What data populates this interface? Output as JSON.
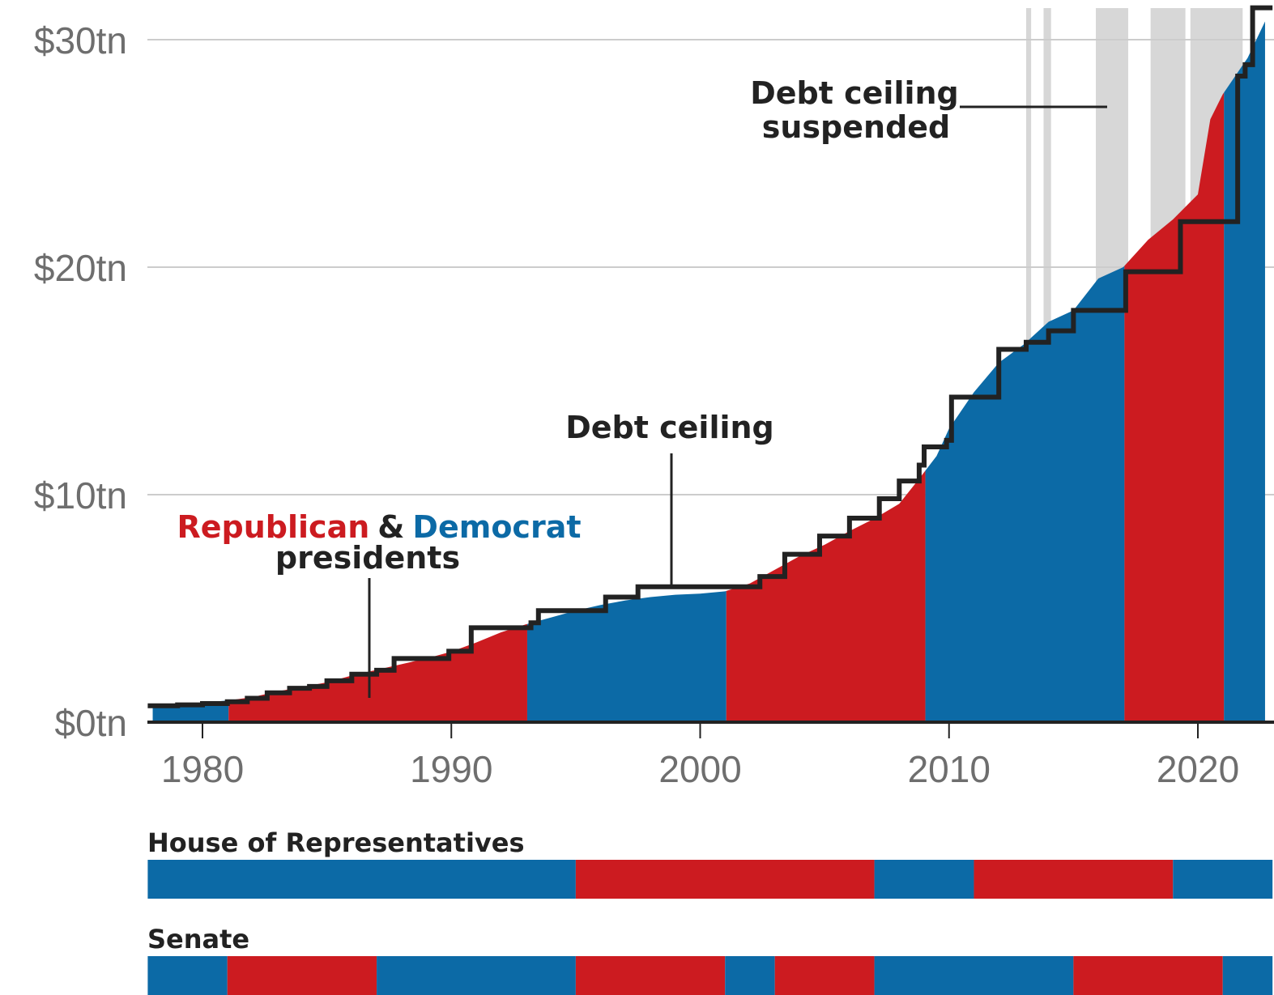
{
  "colors": {
    "republican": "#cc1b20",
    "democrat": "#0c6aa6",
    "ceiling": "#222222",
    "suspended": "#d7d7d7",
    "grid": "#cccccc",
    "axis": "#222222",
    "tick_text": "#6e6e6e"
  },
  "chart_data": {
    "type": "area",
    "ylim": [
      0,
      31.5
    ],
    "xlim": [
      1977.8,
      2023.0
    ],
    "y_ticks": [
      {
        "value": 0,
        "label": "$0tn"
      },
      {
        "value": 10,
        "label": "$10tn"
      },
      {
        "value": 20,
        "label": "$20tn"
      },
      {
        "value": 30,
        "label": "$30tn"
      }
    ],
    "x_ticks": [
      {
        "value": 1980,
        "label": "1980"
      },
      {
        "value": 1990,
        "label": "1990"
      },
      {
        "value": 2000,
        "label": "2000"
      },
      {
        "value": 2010,
        "label": "2010"
      },
      {
        "value": 2020,
        "label": "2020"
      }
    ],
    "grid": true,
    "series": [
      {
        "name": "Debt",
        "x": [
          1978.0,
          1979.0,
          1980.0,
          1981.0,
          1982.0,
          1983.0,
          1984.0,
          1985.0,
          1986.0,
          1987.0,
          1988.0,
          1989.0,
          1990.0,
          1991.0,
          1992.0,
          1993.0,
          1994.0,
          1995.0,
          1996.0,
          1997.0,
          1998.0,
          1999.0,
          2000.0,
          2001.0,
          2002.0,
          2003.0,
          2004.0,
          2005.0,
          2006.0,
          2007.0,
          2008.0,
          2008.8,
          2009.5,
          2010.0,
          2011.0,
          2012.0,
          2013.0,
          2014.0,
          2015.0,
          2016.0,
          2017.0,
          2018.0,
          2019.0,
          2020.0,
          2020.5,
          2021.0,
          2022.0,
          2022.7
        ],
        "values": [
          0.7,
          0.78,
          0.86,
          0.95,
          1.1,
          1.35,
          1.55,
          1.75,
          2.05,
          2.3,
          2.55,
          2.8,
          3.1,
          3.5,
          3.95,
          4.3,
          4.6,
          4.9,
          5.15,
          5.35,
          5.5,
          5.6,
          5.65,
          5.75,
          6.1,
          6.7,
          7.3,
          7.8,
          8.4,
          8.95,
          9.6,
          10.7,
          11.7,
          12.9,
          14.5,
          15.8,
          16.6,
          17.6,
          18.1,
          19.5,
          20.0,
          21.2,
          22.1,
          23.2,
          26.5,
          27.6,
          29.2,
          30.8
        ]
      },
      {
        "name": "Debt ceiling",
        "step": true,
        "x": [
          1977.8,
          1979.0,
          1980.0,
          1981.0,
          1981.8,
          1982.6,
          1983.5,
          1984.3,
          1985.0,
          1986.0,
          1987.0,
          1987.7,
          1989.0,
          1989.9,
          1990.8,
          1993.2,
          1993.5,
          1995.0,
          1996.2,
          1997.5,
          1999.8,
          2002.4,
          2003.4,
          2004.8,
          2006.0,
          2007.2,
          2008.0,
          2008.8,
          2009.0,
          2009.2,
          2009.9,
          2010.1,
          2012.0,
          2013.1,
          2014.0,
          2015.0,
          2017.1,
          2019.3,
          2021.6,
          2021.9,
          2022.2,
          2023.0
        ],
        "values": [
          0.72,
          0.76,
          0.82,
          0.9,
          1.05,
          1.29,
          1.49,
          1.57,
          1.82,
          2.11,
          2.28,
          2.8,
          2.8,
          3.12,
          4.15,
          4.37,
          4.9,
          4.9,
          5.5,
          5.95,
          5.95,
          6.4,
          7.38,
          8.18,
          8.97,
          9.82,
          10.6,
          11.3,
          12.1,
          12.1,
          12.39,
          14.29,
          16.39,
          16.7,
          17.2,
          18.1,
          19.8,
          22.0,
          28.4,
          28.9,
          31.4,
          31.4
        ]
      }
    ],
    "presidencies": [
      {
        "party": "Democrat",
        "start": 1977.8,
        "end": 1981.05
      },
      {
        "party": "Republican",
        "start": 1981.05,
        "end": 1993.05
      },
      {
        "party": "Democrat",
        "start": 1993.05,
        "end": 2001.05
      },
      {
        "party": "Republican",
        "start": 2001.05,
        "end": 2009.05
      },
      {
        "party": "Democrat",
        "start": 2009.05,
        "end": 2017.05
      },
      {
        "party": "Republican",
        "start": 2017.05,
        "end": 2021.05
      },
      {
        "party": "Democrat",
        "start": 2021.05,
        "end": 2023.0
      }
    ],
    "suspensions": [
      {
        "start": 2013.1,
        "end": 2013.3
      },
      {
        "start": 2013.8,
        "end": 2014.1
      },
      {
        "start": 2015.9,
        "end": 2017.2
      },
      {
        "start": 2018.1,
        "end": 2019.5
      },
      {
        "start": 2019.7,
        "end": 2021.8
      }
    ],
    "house": [
      {
        "party": "Democrat",
        "start": 1977.8,
        "end": 1995.0
      },
      {
        "party": "Republican",
        "start": 1995.0,
        "end": 2007.0
      },
      {
        "party": "Democrat",
        "start": 2007.0,
        "end": 2011.0
      },
      {
        "party": "Republican",
        "start": 2011.0,
        "end": 2019.0
      },
      {
        "party": "Democrat",
        "start": 2019.0,
        "end": 2023.0
      }
    ],
    "senate": [
      {
        "party": "Democrat",
        "start": 1977.8,
        "end": 1981.0
      },
      {
        "party": "Republican",
        "start": 1981.0,
        "end": 1987.0
      },
      {
        "party": "Democrat",
        "start": 1987.0,
        "end": 1995.0
      },
      {
        "party": "Republican",
        "start": 1995.0,
        "end": 2001.0
      },
      {
        "party": "Democrat",
        "start": 2001.0,
        "end": 2003.0
      },
      {
        "party": "Republican",
        "start": 2003.0,
        "end": 2007.0
      },
      {
        "party": "Democrat",
        "start": 2007.0,
        "end": 2015.0
      },
      {
        "party": "Republican",
        "start": 2015.0,
        "end": 2021.0
      },
      {
        "party": "Democrat",
        "start": 2021.0,
        "end": 2023.0
      }
    ]
  },
  "annotations": {
    "presidents": {
      "republican": "Republican",
      "amp": "&",
      "democrat": "Democrat",
      "line2": "presidents"
    },
    "ceiling": "Debt ceiling",
    "suspended": {
      "line1": "Debt ceiling",
      "line2": "suspended"
    }
  },
  "bands": {
    "house_label": "House of Representatives",
    "senate_label": "Senate"
  }
}
